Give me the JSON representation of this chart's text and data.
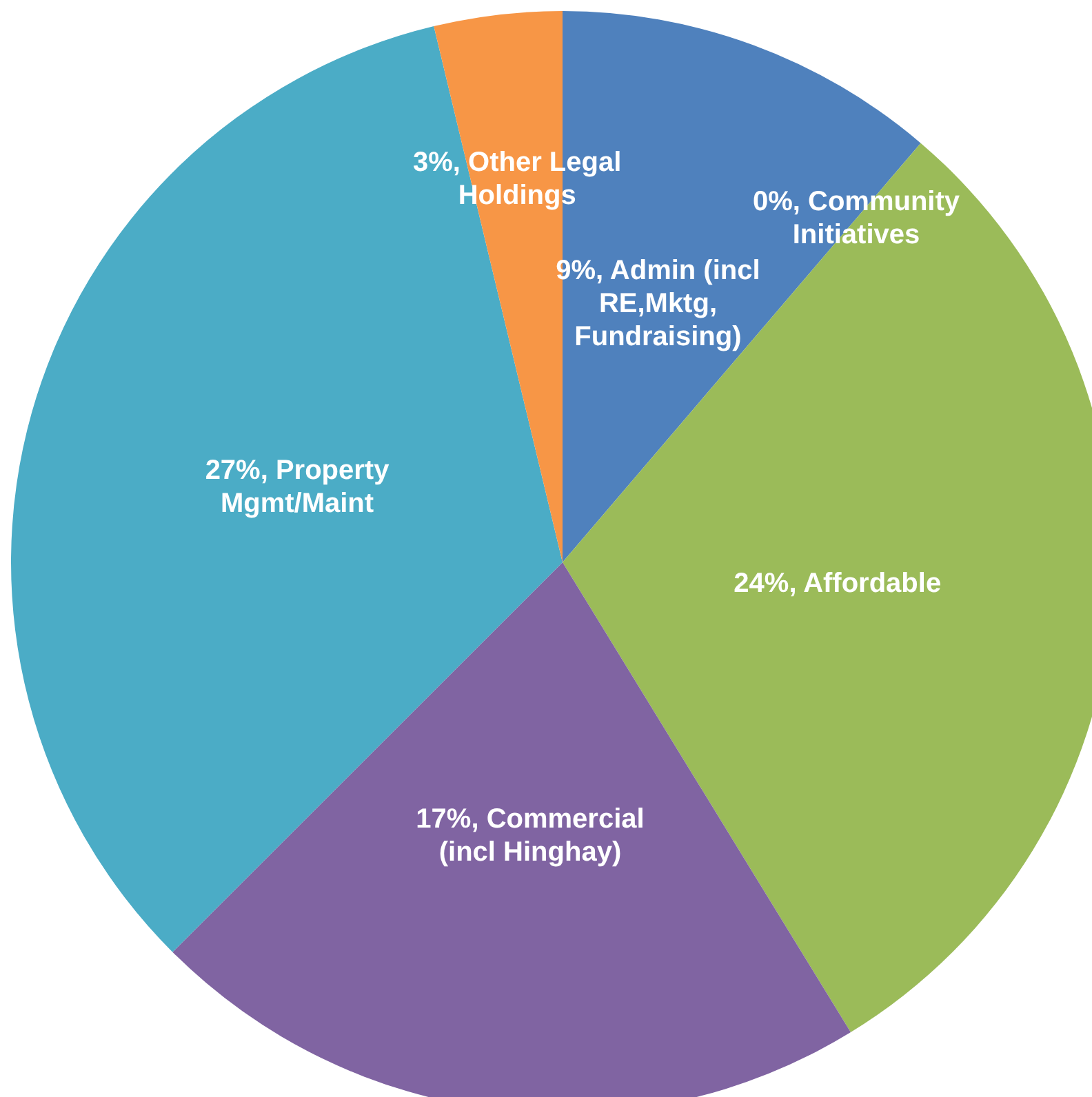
{
  "chart_data": {
    "type": "pie",
    "categories": [
      "Admin (incl RE,Mktg, Fundraising)",
      "Community Initiatives",
      "Affordable",
      "Commercial (incl Hinghay)",
      "Property Mgmt/Maint",
      "Other Legal Holdings"
    ],
    "values": [
      9,
      0,
      24,
      17,
      27,
      3
    ],
    "value_labels": [
      "9%,",
      "0%,",
      "24%,",
      "17%,",
      "27%,",
      "3%,"
    ],
    "colors": [
      "#4f81bd",
      "#c0504d",
      "#9bbb59",
      "#8064a2",
      "#4bacc6",
      "#f79646"
    ],
    "legend": false
  }
}
